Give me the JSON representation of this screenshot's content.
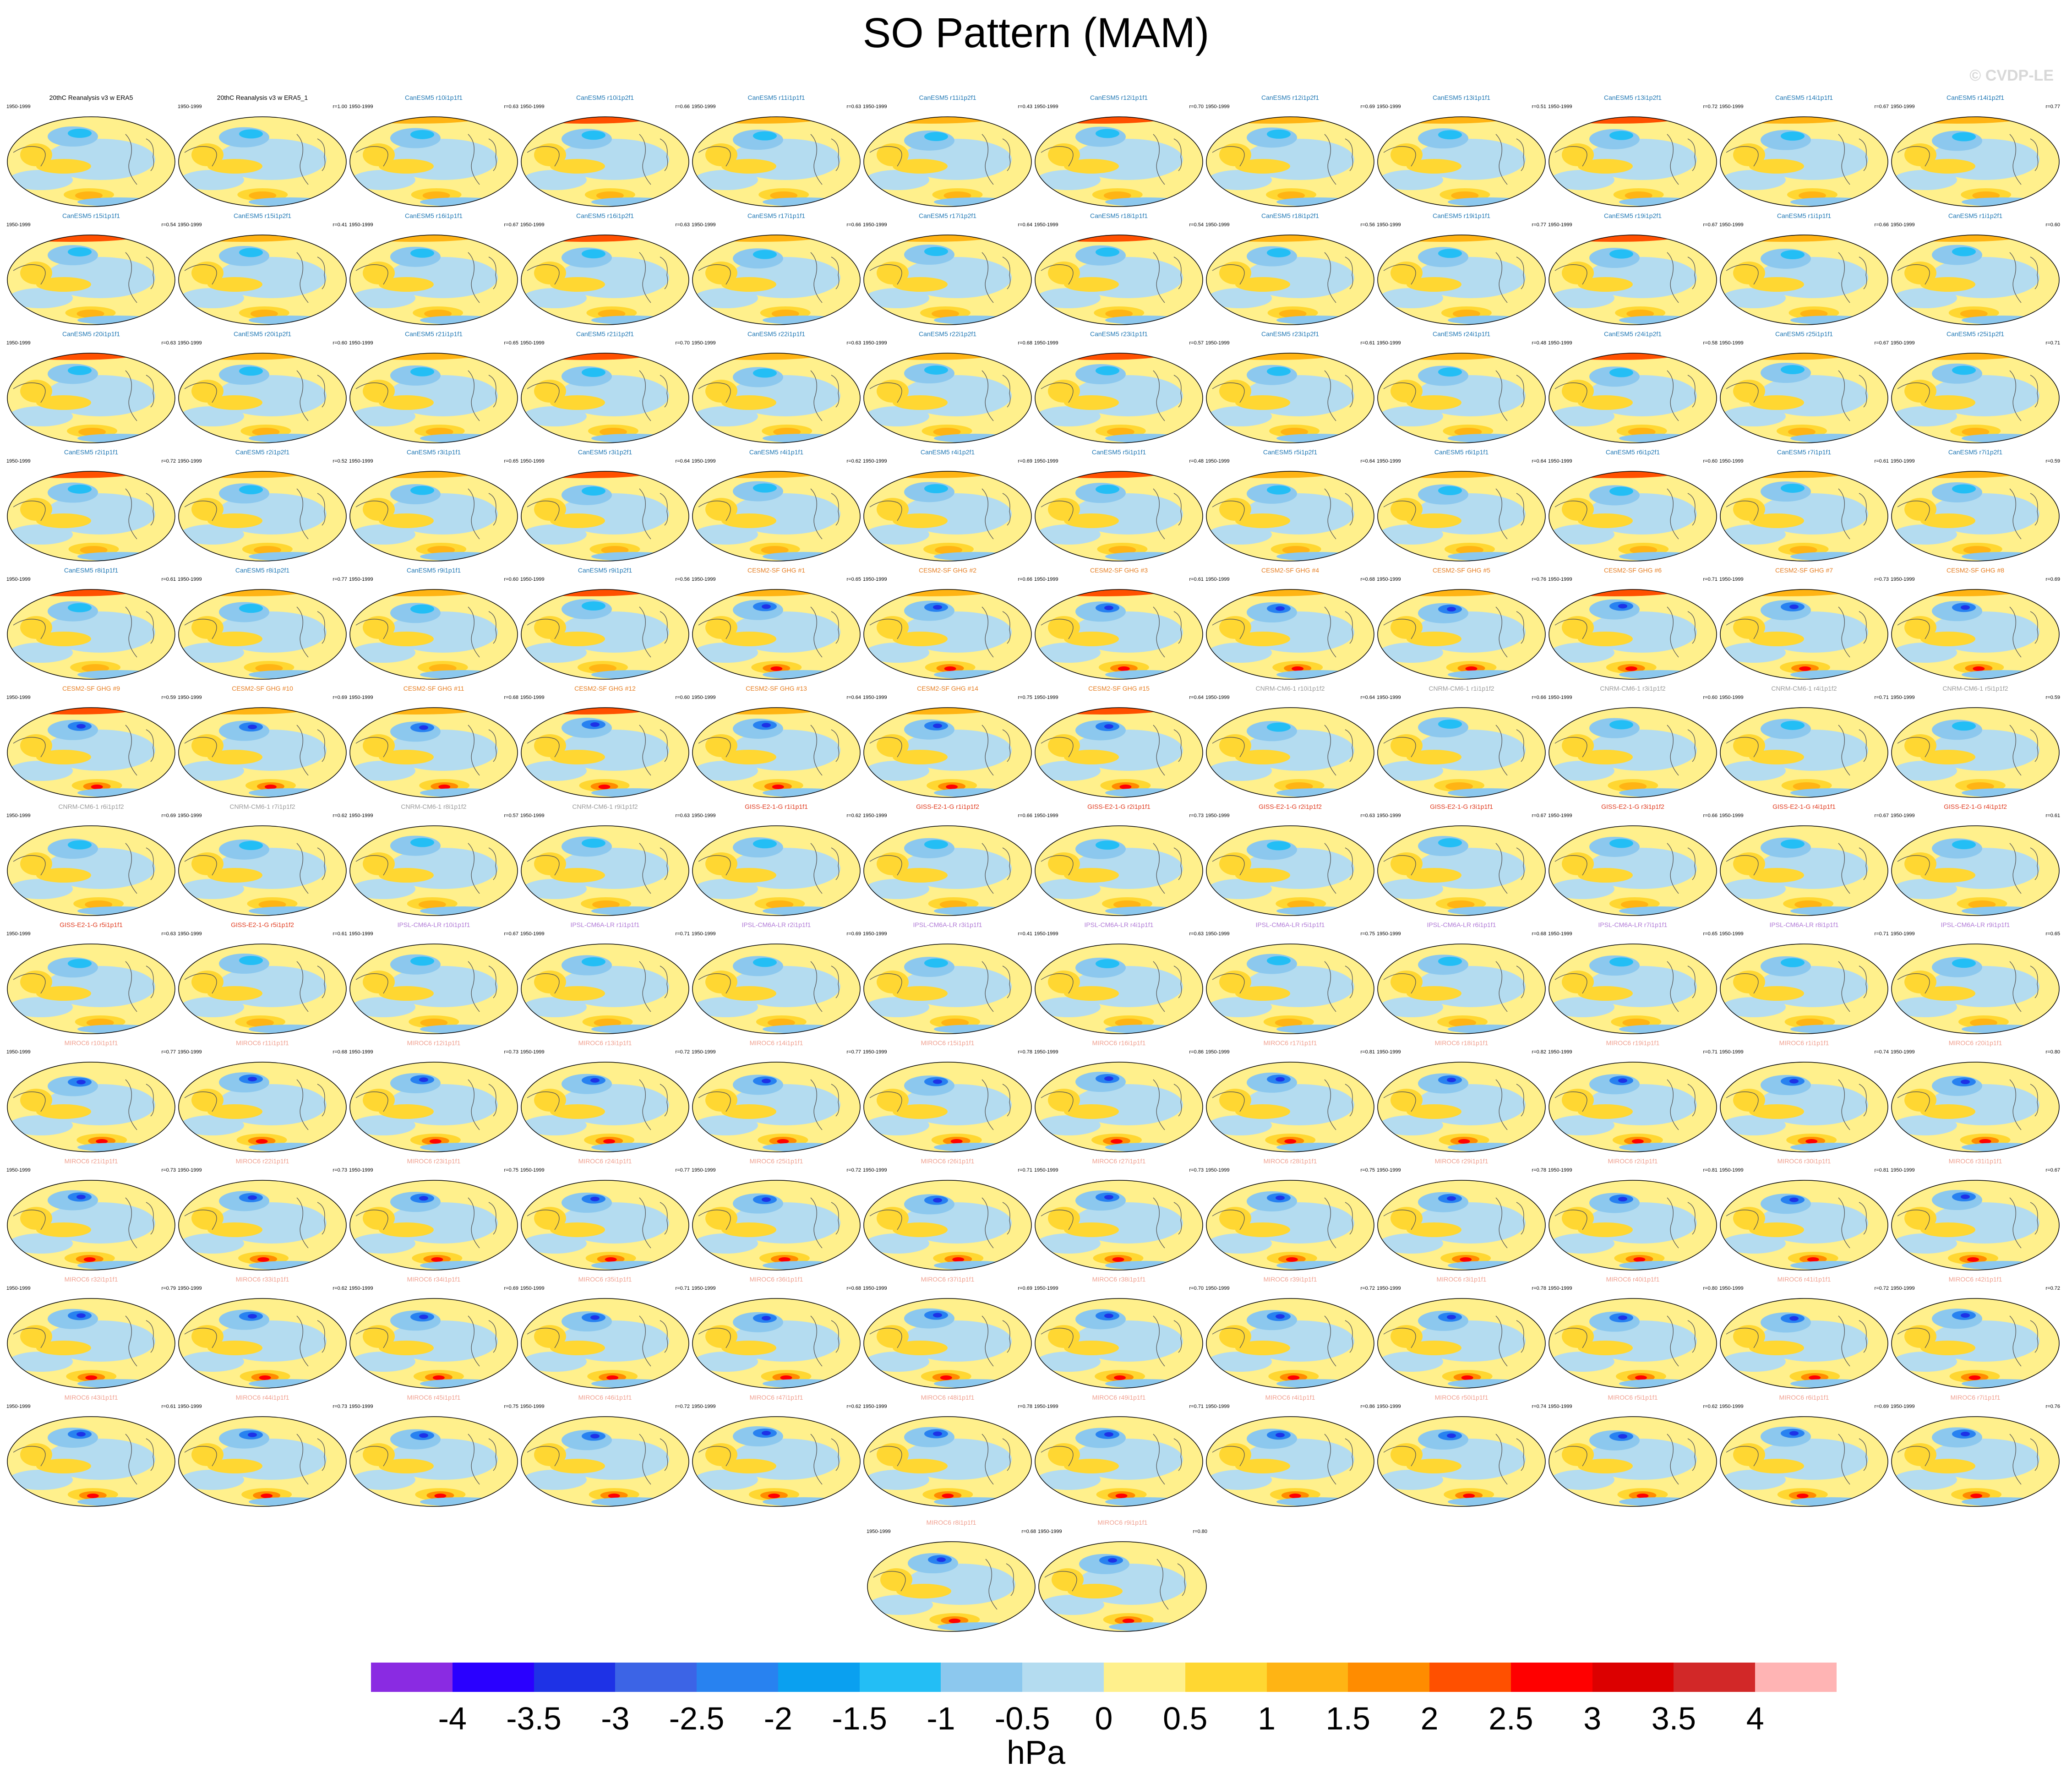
{
  "title": "SO Pattern (MAM)",
  "watermark": "© CVDP-LE",
  "chart_data": {
    "type": "heatmap",
    "description_type": "panel grid of global map patterns",
    "period": "1950-1999",
    "panels": [
      {
        "title": "20thC Reanalysis v3 w ERA5",
        "corr": "",
        "group": "obs"
      },
      {
        "title": "20thC Reanalysis v3 w ERA5_1",
        "corr": "r=1.00",
        "group": "obs"
      },
      {
        "title": "CanESM5 r10i1p1f1",
        "corr": "r=0.63",
        "group": "canesm"
      },
      {
        "title": "CanESM5 r10i1p2f1",
        "corr": "r=0.66",
        "group": "canesm"
      },
      {
        "title": "CanESM5 r11i1p1f1",
        "corr": "r=0.63",
        "group": "canesm"
      },
      {
        "title": "CanESM5 r11i1p2f1",
        "corr": "r=0.43",
        "group": "canesm"
      },
      {
        "title": "CanESM5 r12i1p1f1",
        "corr": "r=0.70",
        "group": "canesm"
      },
      {
        "title": "CanESM5 r12i1p2f1",
        "corr": "r=0.69",
        "group": "canesm"
      },
      {
        "title": "CanESM5 r13i1p1f1",
        "corr": "r=0.51",
        "group": "canesm"
      },
      {
        "title": "CanESM5 r13i1p2f1",
        "corr": "r=0.72",
        "group": "canesm"
      },
      {
        "title": "CanESM5 r14i1p1f1",
        "corr": "r=0.67",
        "group": "canesm"
      },
      {
        "title": "CanESM5 r14i1p2f1",
        "corr": "r=0.77",
        "group": "canesm"
      },
      {
        "title": "CanESM5 r15i1p1f1",
        "corr": "r=0.54",
        "group": "canesm"
      },
      {
        "title": "CanESM5 r15i1p2f1",
        "corr": "r=0.41",
        "group": "canesm"
      },
      {
        "title": "CanESM5 r16i1p1f1",
        "corr": "r=0.67",
        "group": "canesm"
      },
      {
        "title": "CanESM5 r16i1p2f1",
        "corr": "r=0.63",
        "group": "canesm"
      },
      {
        "title": "CanESM5 r17i1p1f1",
        "corr": "r=0.66",
        "group": "canesm"
      },
      {
        "title": "CanESM5 r17i1p2f1",
        "corr": "r=0.64",
        "group": "canesm"
      },
      {
        "title": "CanESM5 r18i1p1f1",
        "corr": "r=0.54",
        "group": "canesm"
      },
      {
        "title": "CanESM5 r18i1p2f1",
        "corr": "r=0.56",
        "group": "canesm"
      },
      {
        "title": "CanESM5 r19i1p1f1",
        "corr": "r=0.77",
        "group": "canesm"
      },
      {
        "title": "CanESM5 r19i1p2f1",
        "corr": "r=0.67",
        "group": "canesm"
      },
      {
        "title": "CanESM5 r1i1p1f1",
        "corr": "r=0.66",
        "group": "canesm"
      },
      {
        "title": "CanESM5 r1i1p2f1",
        "corr": "r=0.60",
        "group": "canesm"
      },
      {
        "title": "CanESM5 r20i1p1f1",
        "corr": "r=0.63",
        "group": "canesm"
      },
      {
        "title": "CanESM5 r20i1p2f1",
        "corr": "r=0.60",
        "group": "canesm"
      },
      {
        "title": "CanESM5 r21i1p1f1",
        "corr": "r=0.65",
        "group": "canesm"
      },
      {
        "title": "CanESM5 r21i1p2f1",
        "corr": "r=0.70",
        "group": "canesm"
      },
      {
        "title": "CanESM5 r22i1p1f1",
        "corr": "r=0.63",
        "group": "canesm"
      },
      {
        "title": "CanESM5 r22i1p2f1",
        "corr": "r=0.68",
        "group": "canesm"
      },
      {
        "title": "CanESM5 r23i1p1f1",
        "corr": "r=0.57",
        "group": "canesm"
      },
      {
        "title": "CanESM5 r23i1p2f1",
        "corr": "r=0.61",
        "group": "canesm"
      },
      {
        "title": "CanESM5 r24i1p1f1",
        "corr": "r=0.48",
        "group": "canesm"
      },
      {
        "title": "CanESM5 r24i1p2f1",
        "corr": "r=0.58",
        "group": "canesm"
      },
      {
        "title": "CanESM5 r25i1p1f1",
        "corr": "r=0.67",
        "group": "canesm"
      },
      {
        "title": "CanESM5 r25i1p2f1",
        "corr": "r=0.71",
        "group": "canesm"
      },
      {
        "title": "CanESM5 r2i1p1f1",
        "corr": "r=0.72",
        "group": "canesm"
      },
      {
        "title": "CanESM5 r2i1p2f1",
        "corr": "r=0.52",
        "group": "canesm"
      },
      {
        "title": "CanESM5 r3i1p1f1",
        "corr": "r=0.65",
        "group": "canesm"
      },
      {
        "title": "CanESM5 r3i1p2f1",
        "corr": "r=0.64",
        "group": "canesm"
      },
      {
        "title": "CanESM5 r4i1p1f1",
        "corr": "r=0.62",
        "group": "canesm"
      },
      {
        "title": "CanESM5 r4i1p2f1",
        "corr": "r=0.69",
        "group": "canesm"
      },
      {
        "title": "CanESM5 r5i1p1f1",
        "corr": "r=0.48",
        "group": "canesm"
      },
      {
        "title": "CanESM5 r5i1p2f1",
        "corr": "r=0.64",
        "group": "canesm"
      },
      {
        "title": "CanESM5 r6i1p1f1",
        "corr": "r=0.64",
        "group": "canesm"
      },
      {
        "title": "CanESM5 r6i1p2f1",
        "corr": "r=0.60",
        "group": "canesm"
      },
      {
        "title": "CanESM5 r7i1p1f1",
        "corr": "r=0.61",
        "group": "canesm"
      },
      {
        "title": "CanESM5 r7i1p2f1",
        "corr": "r=0.59",
        "group": "canesm"
      },
      {
        "title": "CanESM5 r8i1p1f1",
        "corr": "r=0.61",
        "group": "canesm"
      },
      {
        "title": "CanESM5 r8i1p2f1",
        "corr": "r=0.77",
        "group": "canesm"
      },
      {
        "title": "CanESM5 r9i1p1f1",
        "corr": "r=0.60",
        "group": "canesm"
      },
      {
        "title": "CanESM5 r9i1p2f1",
        "corr": "r=0.56",
        "group": "canesm"
      },
      {
        "title": "CESM2-SF GHG #1",
        "corr": "r=0.65",
        "group": "cesm"
      },
      {
        "title": "CESM2-SF GHG #2",
        "corr": "r=0.66",
        "group": "cesm"
      },
      {
        "title": "CESM2-SF GHG #3",
        "corr": "r=0.61",
        "group": "cesm"
      },
      {
        "title": "CESM2-SF GHG #4",
        "corr": "r=0.68",
        "group": "cesm"
      },
      {
        "title": "CESM2-SF GHG #5",
        "corr": "r=0.76",
        "group": "cesm"
      },
      {
        "title": "CESM2-SF GHG #6",
        "corr": "r=0.71",
        "group": "cesm"
      },
      {
        "title": "CESM2-SF GHG #7",
        "corr": "r=0.73",
        "group": "cesm"
      },
      {
        "title": "CESM2-SF GHG #8",
        "corr": "r=0.69",
        "group": "cesm"
      },
      {
        "title": "CESM2-SF GHG #9",
        "corr": "r=0.59",
        "group": "cesm"
      },
      {
        "title": "CESM2-SF GHG #10",
        "corr": "r=0.69",
        "group": "cesm"
      },
      {
        "title": "CESM2-SF GHG #11",
        "corr": "r=0.68",
        "group": "cesm"
      },
      {
        "title": "CESM2-SF GHG #12",
        "corr": "r=0.60",
        "group": "cesm"
      },
      {
        "title": "CESM2-SF GHG #13",
        "corr": "r=0.64",
        "group": "cesm"
      },
      {
        "title": "CESM2-SF GHG #14",
        "corr": "r=0.75",
        "group": "cesm"
      },
      {
        "title": "CESM2-SF GHG #15",
        "corr": "r=0.64",
        "group": "cesm"
      },
      {
        "title": "CNRM-CM6-1 r10i1p1f2",
        "corr": "r=0.64",
        "group": "cnrm"
      },
      {
        "title": "CNRM-CM6-1 r1i1p1f2",
        "corr": "r=0.66",
        "group": "cnrm"
      },
      {
        "title": "CNRM-CM6-1 r3i1p1f2",
        "corr": "r=0.60",
        "group": "cnrm"
      },
      {
        "title": "CNRM-CM6-1 r4i1p1f2",
        "corr": "r=0.71",
        "group": "cnrm"
      },
      {
        "title": "CNRM-CM6-1 r5i1p1f2",
        "corr": "r=0.59",
        "group": "cnrm"
      },
      {
        "title": "CNRM-CM6-1 r6i1p1f2",
        "corr": "r=0.69",
        "group": "cnrm"
      },
      {
        "title": "CNRM-CM6-1 r7i1p1f2",
        "corr": "r=0.62",
        "group": "cnrm"
      },
      {
        "title": "CNRM-CM6-1 r8i1p1f2",
        "corr": "r=0.57",
        "group": "cnrm"
      },
      {
        "title": "CNRM-CM6-1 r9i1p1f2",
        "corr": "r=0.63",
        "group": "cnrm"
      },
      {
        "title": "GISS-E2-1-G r1i1p1f1",
        "corr": "r=0.62",
        "group": "giss"
      },
      {
        "title": "GISS-E2-1-G r1i1p1f2",
        "corr": "r=0.66",
        "group": "giss"
      },
      {
        "title": "GISS-E2-1-G r2i1p1f1",
        "corr": "r=0.73",
        "group": "giss"
      },
      {
        "title": "GISS-E2-1-G r2i1p1f2",
        "corr": "r=0.63",
        "group": "giss"
      },
      {
        "title": "GISS-E2-1-G r3i1p1f1",
        "corr": "r=0.67",
        "group": "giss"
      },
      {
        "title": "GISS-E2-1-G r3i1p1f2",
        "corr": "r=0.66",
        "group": "giss"
      },
      {
        "title": "GISS-E2-1-G r4i1p1f1",
        "corr": "r=0.67",
        "group": "giss"
      },
      {
        "title": "GISS-E2-1-G r4i1p1f2",
        "corr": "r=0.61",
        "group": "giss"
      },
      {
        "title": "GISS-E2-1-G r5i1p1f1",
        "corr": "r=0.63",
        "group": "giss"
      },
      {
        "title": "GISS-E2-1-G r5i1p1f2",
        "corr": "r=0.61",
        "group": "giss"
      },
      {
        "title": "IPSL-CM6A-LR r10i1p1f1",
        "corr": "r=0.67",
        "group": "ipsl"
      },
      {
        "title": "IPSL-CM6A-LR r1i1p1f1",
        "corr": "r=0.71",
        "group": "ipsl"
      },
      {
        "title": "IPSL-CM6A-LR r2i1p1f1",
        "corr": "r=0.69",
        "group": "ipsl"
      },
      {
        "title": "IPSL-CM6A-LR r3i1p1f1",
        "corr": "r=0.41",
        "group": "ipsl"
      },
      {
        "title": "IPSL-CM6A-LR r4i1p1f1",
        "corr": "r=0.63",
        "group": "ipsl"
      },
      {
        "title": "IPSL-CM6A-LR r5i1p1f1",
        "corr": "r=0.75",
        "group": "ipsl"
      },
      {
        "title": "IPSL-CM6A-LR r6i1p1f1",
        "corr": "r=0.68",
        "group": "ipsl"
      },
      {
        "title": "IPSL-CM6A-LR r7i1p1f1",
        "corr": "r=0.65",
        "group": "ipsl"
      },
      {
        "title": "IPSL-CM6A-LR r8i1p1f1",
        "corr": "r=0.71",
        "group": "ipsl"
      },
      {
        "title": "IPSL-CM6A-LR r9i1p1f1",
        "corr": "r=0.65",
        "group": "ipsl"
      },
      {
        "title": "MIROC6 r10i1p1f1",
        "corr": "r=0.77",
        "group": "miroc"
      },
      {
        "title": "MIROC6 r11i1p1f1",
        "corr": "r=0.68",
        "group": "miroc"
      },
      {
        "title": "MIROC6 r12i1p1f1",
        "corr": "r=0.73",
        "group": "miroc"
      },
      {
        "title": "MIROC6 r13i1p1f1",
        "corr": "r=0.72",
        "group": "miroc"
      },
      {
        "title": "MIROC6 r14i1p1f1",
        "corr": "r=0.77",
        "group": "miroc"
      },
      {
        "title": "MIROC6 r15i1p1f1",
        "corr": "r=0.78",
        "group": "miroc"
      },
      {
        "title": "MIROC6 r16i1p1f1",
        "corr": "r=0.86",
        "group": "miroc"
      },
      {
        "title": "MIROC6 r17i1p1f1",
        "corr": "r=0.81",
        "group": "miroc"
      },
      {
        "title": "MIROC6 r18i1p1f1",
        "corr": "r=0.82",
        "group": "miroc"
      },
      {
        "title": "MIROC6 r19i1p1f1",
        "corr": "r=0.71",
        "group": "miroc"
      },
      {
        "title": "MIROC6 r1i1p1f1",
        "corr": "r=0.74",
        "group": "miroc"
      },
      {
        "title": "MIROC6 r20i1p1f1",
        "corr": "r=0.80",
        "group": "miroc"
      },
      {
        "title": "MIROC6 r21i1p1f1",
        "corr": "r=0.73",
        "group": "miroc"
      },
      {
        "title": "MIROC6 r22i1p1f1",
        "corr": "r=0.73",
        "group": "miroc"
      },
      {
        "title": "MIROC6 r23i1p1f1",
        "corr": "r=0.75",
        "group": "miroc"
      },
      {
        "title": "MIROC6 r24i1p1f1",
        "corr": "r=0.77",
        "group": "miroc"
      },
      {
        "title": "MIROC6 r25i1p1f1",
        "corr": "r=0.72",
        "group": "miroc"
      },
      {
        "title": "MIROC6 r26i1p1f1",
        "corr": "r=0.71",
        "group": "miroc"
      },
      {
        "title": "MIROC6 r27i1p1f1",
        "corr": "r=0.73",
        "group": "miroc"
      },
      {
        "title": "MIROC6 r28i1p1f1",
        "corr": "r=0.75",
        "group": "miroc"
      },
      {
        "title": "MIROC6 r29i1p1f1",
        "corr": "r=0.78",
        "group": "miroc"
      },
      {
        "title": "MIROC6 r2i1p1f1",
        "corr": "r=0.81",
        "group": "miroc"
      },
      {
        "title": "MIROC6 r30i1p1f1",
        "corr": "r=0.81",
        "group": "miroc"
      },
      {
        "title": "MIROC6 r31i1p1f1",
        "corr": "r=0.67",
        "group": "miroc"
      },
      {
        "title": "MIROC6 r32i1p1f1",
        "corr": "r=0.79",
        "group": "miroc"
      },
      {
        "title": "MIROC6 r33i1p1f1",
        "corr": "r=0.62",
        "group": "miroc"
      },
      {
        "title": "MIROC6 r34i1p1f1",
        "corr": "r=0.69",
        "group": "miroc"
      },
      {
        "title": "MIROC6 r35i1p1f1",
        "corr": "r=0.71",
        "group": "miroc"
      },
      {
        "title": "MIROC6 r36i1p1f1",
        "corr": "r=0.68",
        "group": "miroc"
      },
      {
        "title": "MIROC6 r37i1p1f1",
        "corr": "r=0.69",
        "group": "miroc"
      },
      {
        "title": "MIROC6 r38i1p1f1",
        "corr": "r=0.70",
        "group": "miroc"
      },
      {
        "title": "MIROC6 r39i1p1f1",
        "corr": "r=0.72",
        "group": "miroc"
      },
      {
        "title": "MIROC6 r3i1p1f1",
        "corr": "r=0.78",
        "group": "miroc"
      },
      {
        "title": "MIROC6 r40i1p1f1",
        "corr": "r=0.80",
        "group": "miroc"
      },
      {
        "title": "MIROC6 r41i1p1f1",
        "corr": "r=0.72",
        "group": "miroc"
      },
      {
        "title": "MIROC6 r42i1p1f1",
        "corr": "r=0.72",
        "group": "miroc"
      },
      {
        "title": "MIROC6 r43i1p1f1",
        "corr": "r=0.61",
        "group": "miroc"
      },
      {
        "title": "MIROC6 r44i1p1f1",
        "corr": "r=0.73",
        "group": "miroc"
      },
      {
        "title": "MIROC6 r45i1p1f1",
        "corr": "r=0.75",
        "group": "miroc"
      },
      {
        "title": "MIROC6 r46i1p1f1",
        "corr": "r=0.72",
        "group": "miroc"
      },
      {
        "title": "MIROC6 r47i1p1f1",
        "corr": "r=0.62",
        "group": "miroc"
      },
      {
        "title": "MIROC6 r48i1p1f1",
        "corr": "r=0.78",
        "group": "miroc"
      },
      {
        "title": "MIROC6 r49i1p1f1",
        "corr": "r=0.71",
        "group": "miroc"
      },
      {
        "title": "MIROC6 r4i1p1f1",
        "corr": "r=0.86",
        "group": "miroc"
      },
      {
        "title": "MIROC6 r50i1p1f1",
        "corr": "r=0.74",
        "group": "miroc"
      },
      {
        "title": "MIROC6 r5i1p1f1",
        "corr": "r=0.62",
        "group": "miroc"
      },
      {
        "title": "MIROC6 r6i1p1f1",
        "corr": "r=0.69",
        "group": "miroc"
      },
      {
        "title": "MIROC6 r7i1p1f1",
        "corr": "r=0.76",
        "group": "miroc"
      },
      {
        "title": "MIROC6 r8i1p1f1",
        "corr": "r=0.68",
        "group": "miroc"
      },
      {
        "title": "MIROC6 r9i1p1f1",
        "corr": "r=0.80",
        "group": "miroc"
      }
    ],
    "group_colors": {
      "obs": "#000000",
      "canesm": "#1f77b4",
      "cesm": "#e67e22",
      "cnrm": "#9a9a9a",
      "giss": "#e03a1e",
      "ipsl": "#b07ad6",
      "miroc": "#f0a090"
    },
    "colorbar": {
      "unit": "hPa",
      "tick_labels": [
        "-4",
        "-3.5",
        "-3",
        "-2.5",
        "-2",
        "-1.5",
        "-1",
        "-0.5",
        "0",
        "0.5",
        "1",
        "1.5",
        "2",
        "2.5",
        "3",
        "3.5",
        "4"
      ],
      "colors": [
        "#8a2be2",
        "#2a00ff",
        "#1e32e6",
        "#3c64e6",
        "#2882f0",
        "#0aa0f0",
        "#23bef5",
        "#8cc8ee",
        "#b4dcf0",
        "#fff08c",
        "#ffd732",
        "#ffb414",
        "#ff8c00",
        "#ff5000",
        "#ff0000",
        "#dc0000",
        "#d22828",
        "#ffb4b4"
      ]
    }
  }
}
